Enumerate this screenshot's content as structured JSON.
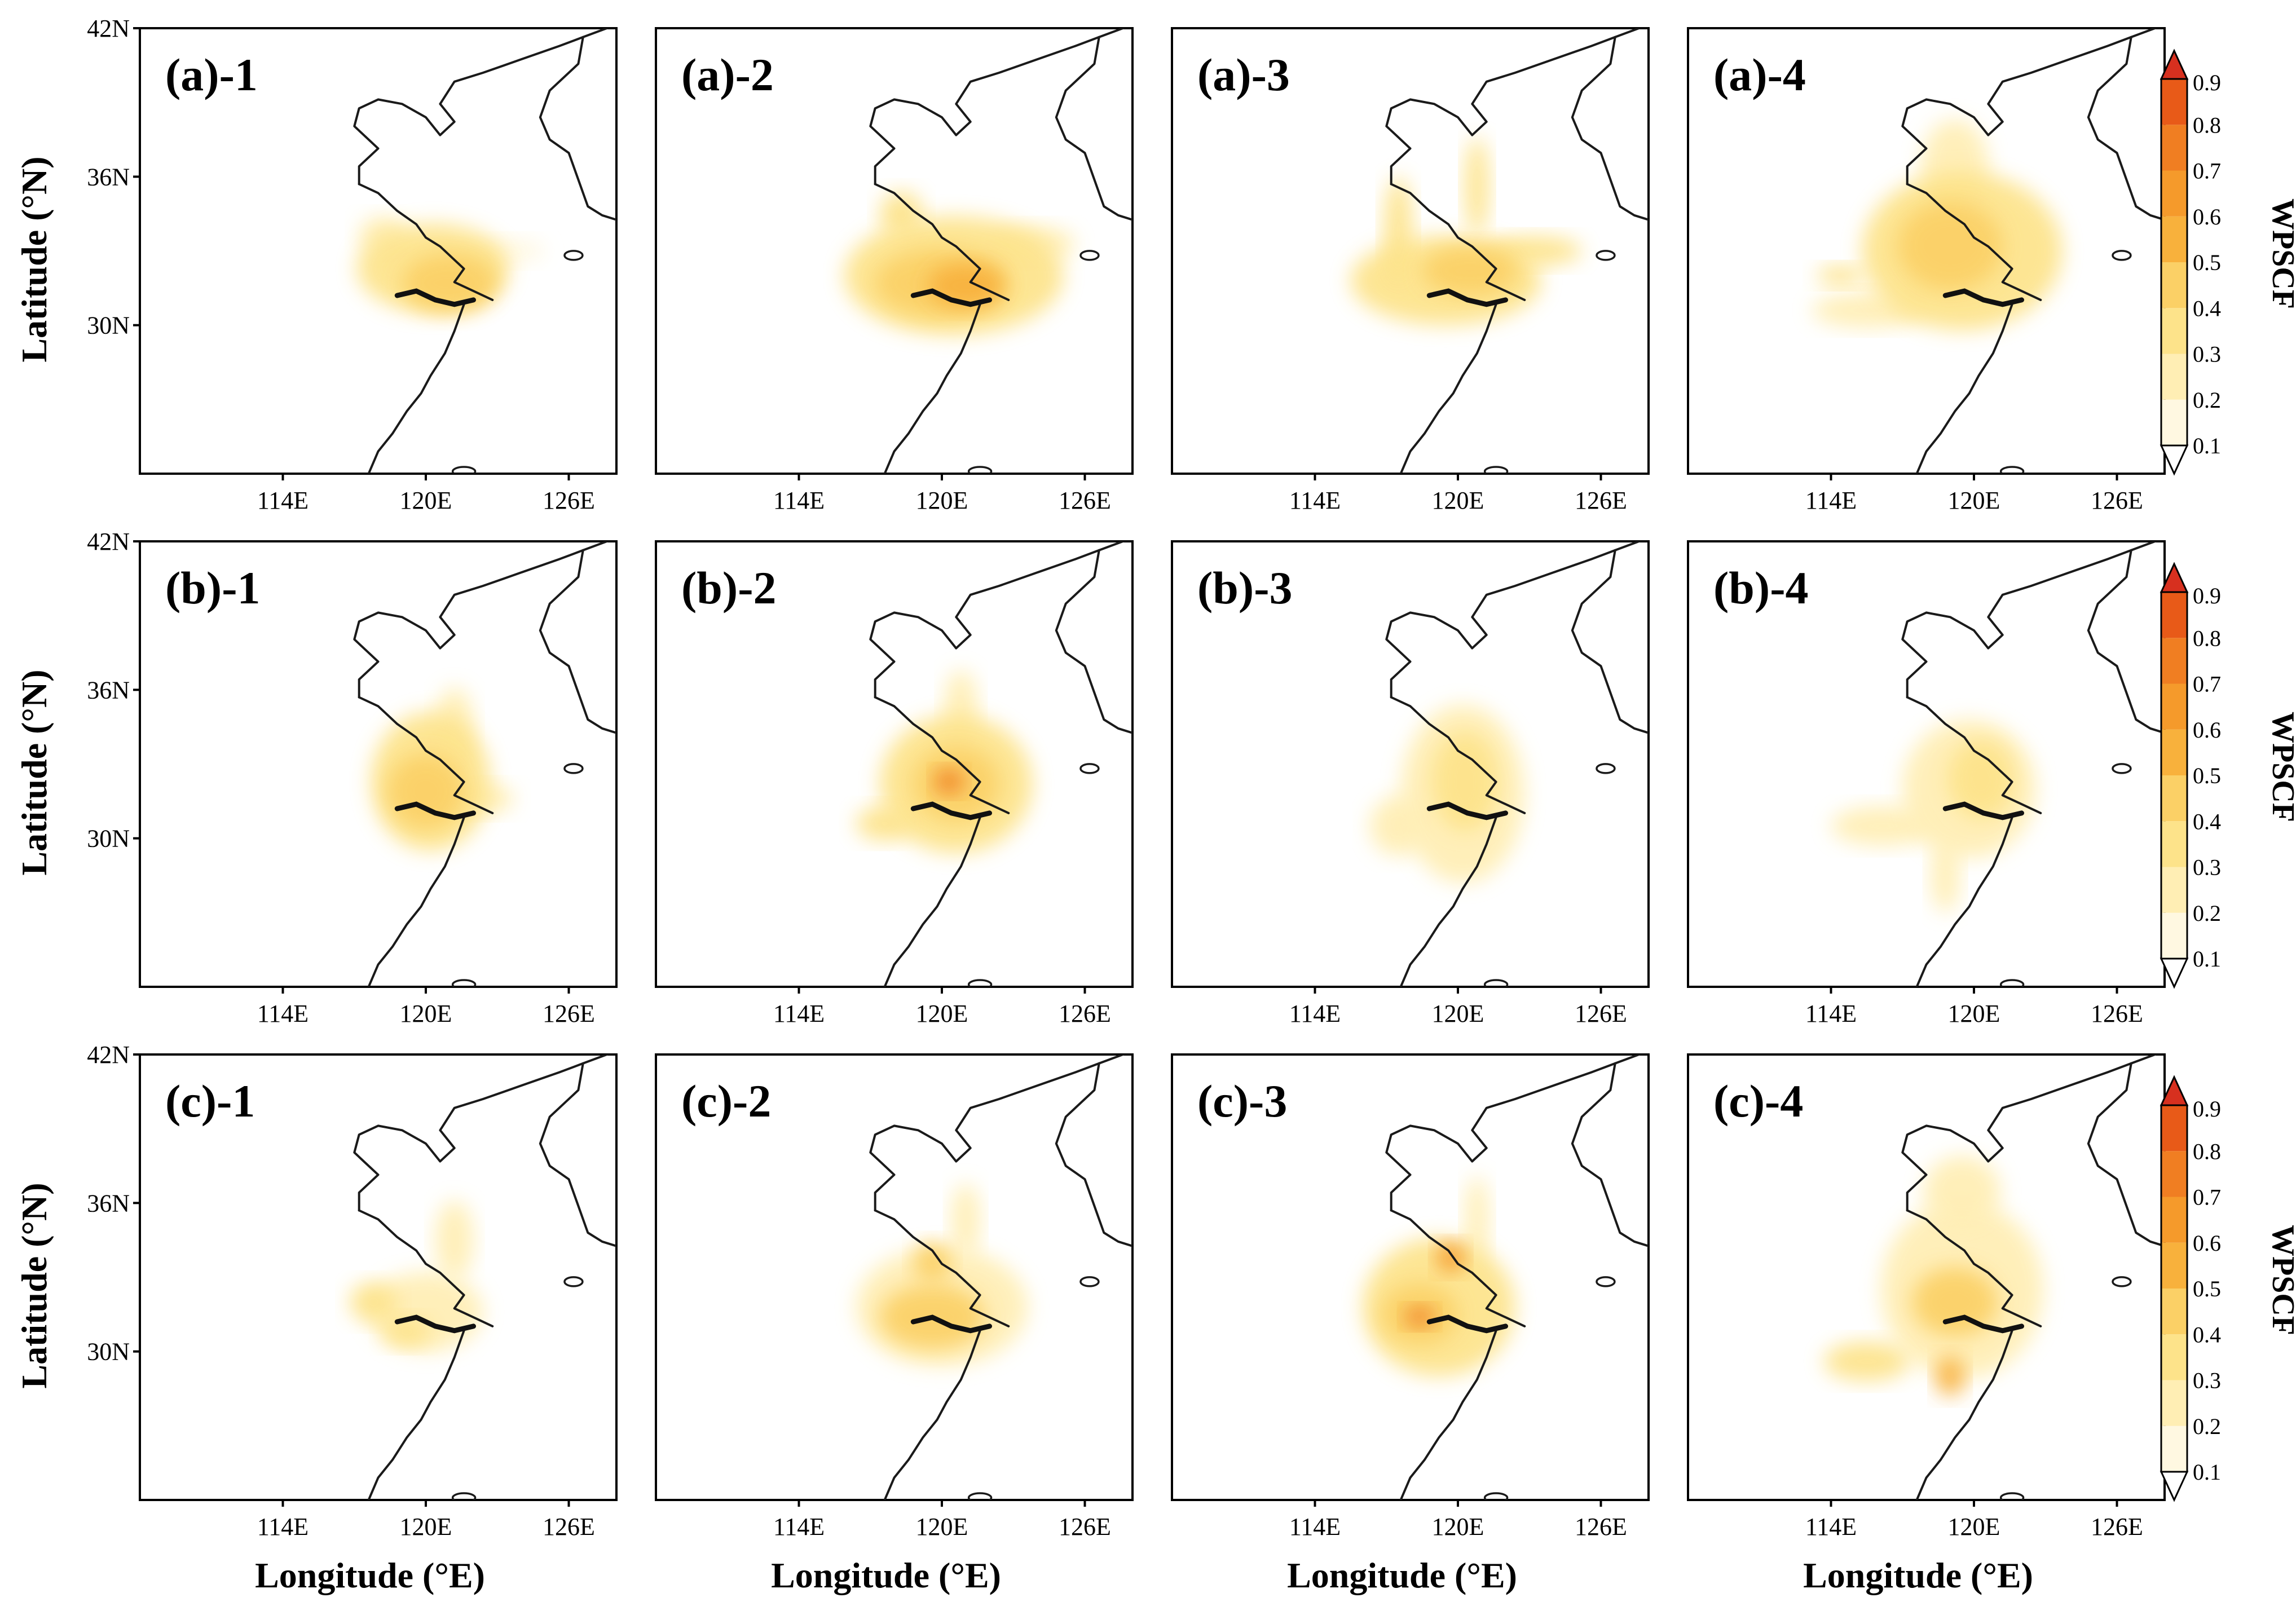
{
  "figure": {
    "lat_axis_label": "Latitude (°N)",
    "lon_axis_label": "Longitude (°E)",
    "lat_ticks": [
      "42N",
      "36N",
      "30N"
    ],
    "lon_ticks": [
      "114E",
      "120E",
      "126E"
    ]
  },
  "colorbar": {
    "title": "WPSCF",
    "levels": [
      "0.1",
      "0.2",
      "0.3",
      "0.4",
      "0.5",
      "0.6",
      "0.7",
      "0.8",
      "0.9"
    ],
    "colors": [
      "#fff8e1",
      "#ffeeb4",
      "#fde38a",
      "#fbd066",
      "#f8b13c",
      "#f59a2b",
      "#f07e22",
      "#e85a18",
      "#d7301f"
    ]
  },
  "chart_data": {
    "type": "heatmap",
    "variable": "WPSCF",
    "lon_range": [
      108,
      128
    ],
    "lat_range": [
      24,
      42
    ],
    "panels": [
      {
        "label": "(a)-1",
        "blobs": [
          {
            "lon": 120.3,
            "lat": 32.3,
            "rx": 3.2,
            "ry": 1.8,
            "v": 0.3
          },
          {
            "lon": 121.0,
            "lat": 31.7,
            "rx": 2.0,
            "ry": 1.2,
            "v": 0.4
          },
          {
            "lon": 118.2,
            "lat": 33.6,
            "rx": 1.0,
            "ry": 0.8,
            "v": 0.2
          },
          {
            "lon": 123.5,
            "lat": 33.0,
            "rx": 1.5,
            "ry": 0.5,
            "v": 0.15
          }
        ]
      },
      {
        "label": "(a)-2",
        "blobs": [
          {
            "lon": 120.5,
            "lat": 32.0,
            "rx": 4.6,
            "ry": 2.4,
            "v": 0.3
          },
          {
            "lon": 120.0,
            "lat": 31.7,
            "rx": 2.8,
            "ry": 1.4,
            "v": 0.4
          },
          {
            "lon": 121.0,
            "lat": 31.6,
            "rx": 1.6,
            "ry": 0.9,
            "v": 0.5
          },
          {
            "lon": 118.3,
            "lat": 34.5,
            "rx": 0.9,
            "ry": 0.9,
            "v": 0.35
          },
          {
            "lon": 123.8,
            "lat": 33.3,
            "rx": 1.8,
            "ry": 0.7,
            "v": 0.25
          }
        ]
      },
      {
        "label": "(a)-3",
        "blobs": [
          {
            "lon": 119.5,
            "lat": 31.8,
            "rx": 4.0,
            "ry": 1.8,
            "v": 0.3
          },
          {
            "lon": 120.5,
            "lat": 32.2,
            "rx": 2.0,
            "ry": 1.0,
            "v": 0.45
          },
          {
            "lon": 117.5,
            "lat": 33.8,
            "rx": 0.6,
            "ry": 2.2,
            "v": 0.3
          },
          {
            "lon": 120.8,
            "lat": 35.6,
            "rx": 0.5,
            "ry": 2.0,
            "v": 0.3
          },
          {
            "lon": 123.2,
            "lat": 33.0,
            "rx": 2.0,
            "ry": 0.6,
            "v": 0.3
          }
        ]
      },
      {
        "label": "(a)-4",
        "blobs": [
          {
            "lon": 119.5,
            "lat": 33.0,
            "rx": 4.2,
            "ry": 3.2,
            "v": 0.3
          },
          {
            "lon": 119.0,
            "lat": 33.2,
            "rx": 2.2,
            "ry": 1.8,
            "v": 0.45
          },
          {
            "lon": 119.2,
            "lat": 36.5,
            "rx": 1.4,
            "ry": 1.8,
            "v": 0.25
          },
          {
            "lon": 115.6,
            "lat": 30.6,
            "rx": 2.4,
            "ry": 0.7,
            "v": 0.2
          },
          {
            "lon": 114.4,
            "lat": 32.0,
            "rx": 1.0,
            "ry": 0.4,
            "v": 0.3
          }
        ]
      },
      {
        "label": "(b)-1",
        "blobs": [
          {
            "lon": 120.2,
            "lat": 32.3,
            "rx": 2.5,
            "ry": 2.8,
            "v": 0.3
          },
          {
            "lon": 120.0,
            "lat": 31.9,
            "rx": 1.6,
            "ry": 1.5,
            "v": 0.4
          },
          {
            "lon": 121.2,
            "lat": 34.5,
            "rx": 0.8,
            "ry": 1.6,
            "v": 0.25
          },
          {
            "lon": 122.5,
            "lat": 31.6,
            "rx": 1.2,
            "ry": 0.6,
            "v": 0.2
          }
        ]
      },
      {
        "label": "(b)-2",
        "blobs": [
          {
            "lon": 120.6,
            "lat": 32.2,
            "rx": 3.2,
            "ry": 2.8,
            "v": 0.3
          },
          {
            "lon": 120.6,
            "lat": 32.2,
            "rx": 1.8,
            "ry": 1.5,
            "v": 0.45
          },
          {
            "lon": 120.3,
            "lat": 32.3,
            "rx": 0.6,
            "ry": 0.5,
            "v": 0.75
          },
          {
            "lon": 120.8,
            "lat": 35.3,
            "rx": 0.7,
            "ry": 1.5,
            "v": 0.25
          },
          {
            "lon": 117.6,
            "lat": 30.6,
            "rx": 1.2,
            "ry": 0.7,
            "v": 0.3
          }
        ]
      },
      {
        "label": "(b)-3",
        "blobs": [
          {
            "lon": 120.2,
            "lat": 31.8,
            "rx": 2.6,
            "ry": 3.6,
            "v": 0.25
          },
          {
            "lon": 120.3,
            "lat": 32.3,
            "rx": 1.4,
            "ry": 2.0,
            "v": 0.35
          },
          {
            "lon": 117.5,
            "lat": 30.5,
            "rx": 1.2,
            "ry": 1.2,
            "v": 0.2
          }
        ]
      },
      {
        "label": "(b)-4",
        "blobs": [
          {
            "lon": 119.8,
            "lat": 32.0,
            "rx": 2.8,
            "ry": 2.8,
            "v": 0.25
          },
          {
            "lon": 120.3,
            "lat": 32.4,
            "rx": 1.4,
            "ry": 1.6,
            "v": 0.3
          },
          {
            "lon": 116.2,
            "lat": 30.5,
            "rx": 2.2,
            "ry": 0.8,
            "v": 0.2
          },
          {
            "lon": 118.8,
            "lat": 28.5,
            "rx": 0.6,
            "ry": 1.5,
            "v": 0.2
          }
        ]
      },
      {
        "label": "(c)-1",
        "blobs": [
          {
            "lon": 120.0,
            "lat": 31.6,
            "rx": 2.4,
            "ry": 1.6,
            "v": 0.25
          },
          {
            "lon": 121.2,
            "lat": 34.5,
            "rx": 0.8,
            "ry": 1.6,
            "v": 0.25
          },
          {
            "lon": 117.8,
            "lat": 32.0,
            "rx": 1.0,
            "ry": 0.8,
            "v": 0.3
          },
          {
            "lon": 119.2,
            "lat": 30.8,
            "rx": 1.0,
            "ry": 0.6,
            "v": 0.35
          }
        ]
      },
      {
        "label": "(c)-2",
        "blobs": [
          {
            "lon": 120.0,
            "lat": 31.8,
            "rx": 3.6,
            "ry": 2.4,
            "v": 0.25
          },
          {
            "lon": 119.6,
            "lat": 31.4,
            "rx": 2.2,
            "ry": 1.3,
            "v": 0.4
          },
          {
            "lon": 119.6,
            "lat": 33.6,
            "rx": 0.8,
            "ry": 0.8,
            "v": 0.4
          },
          {
            "lon": 121.0,
            "lat": 35.3,
            "rx": 0.6,
            "ry": 1.5,
            "v": 0.25
          }
        ]
      },
      {
        "label": "(c)-3",
        "blobs": [
          {
            "lon": 119.2,
            "lat": 31.8,
            "rx": 3.2,
            "ry": 2.8,
            "v": 0.3
          },
          {
            "lon": 118.4,
            "lat": 31.5,
            "rx": 1.6,
            "ry": 1.2,
            "v": 0.45
          },
          {
            "lon": 119.7,
            "lat": 33.8,
            "rx": 0.6,
            "ry": 0.6,
            "v": 0.65
          },
          {
            "lon": 118.4,
            "lat": 31.4,
            "rx": 0.6,
            "ry": 0.4,
            "v": 0.7
          },
          {
            "lon": 120.8,
            "lat": 35.3,
            "rx": 0.5,
            "ry": 1.8,
            "v": 0.25
          }
        ]
      },
      {
        "label": "(c)-4",
        "blobs": [
          {
            "lon": 119.5,
            "lat": 32.5,
            "rx": 3.4,
            "ry": 3.6,
            "v": 0.25
          },
          {
            "lon": 119.2,
            "lat": 32.0,
            "rx": 1.8,
            "ry": 1.4,
            "v": 0.4
          },
          {
            "lon": 119.5,
            "lat": 36.5,
            "rx": 1.6,
            "ry": 1.4,
            "v": 0.25
          },
          {
            "lon": 115.5,
            "lat": 29.6,
            "rx": 1.8,
            "ry": 0.8,
            "v": 0.3
          },
          {
            "lon": 119.0,
            "lat": 29.0,
            "rx": 0.6,
            "ry": 0.8,
            "v": 0.5
          }
        ]
      }
    ]
  }
}
